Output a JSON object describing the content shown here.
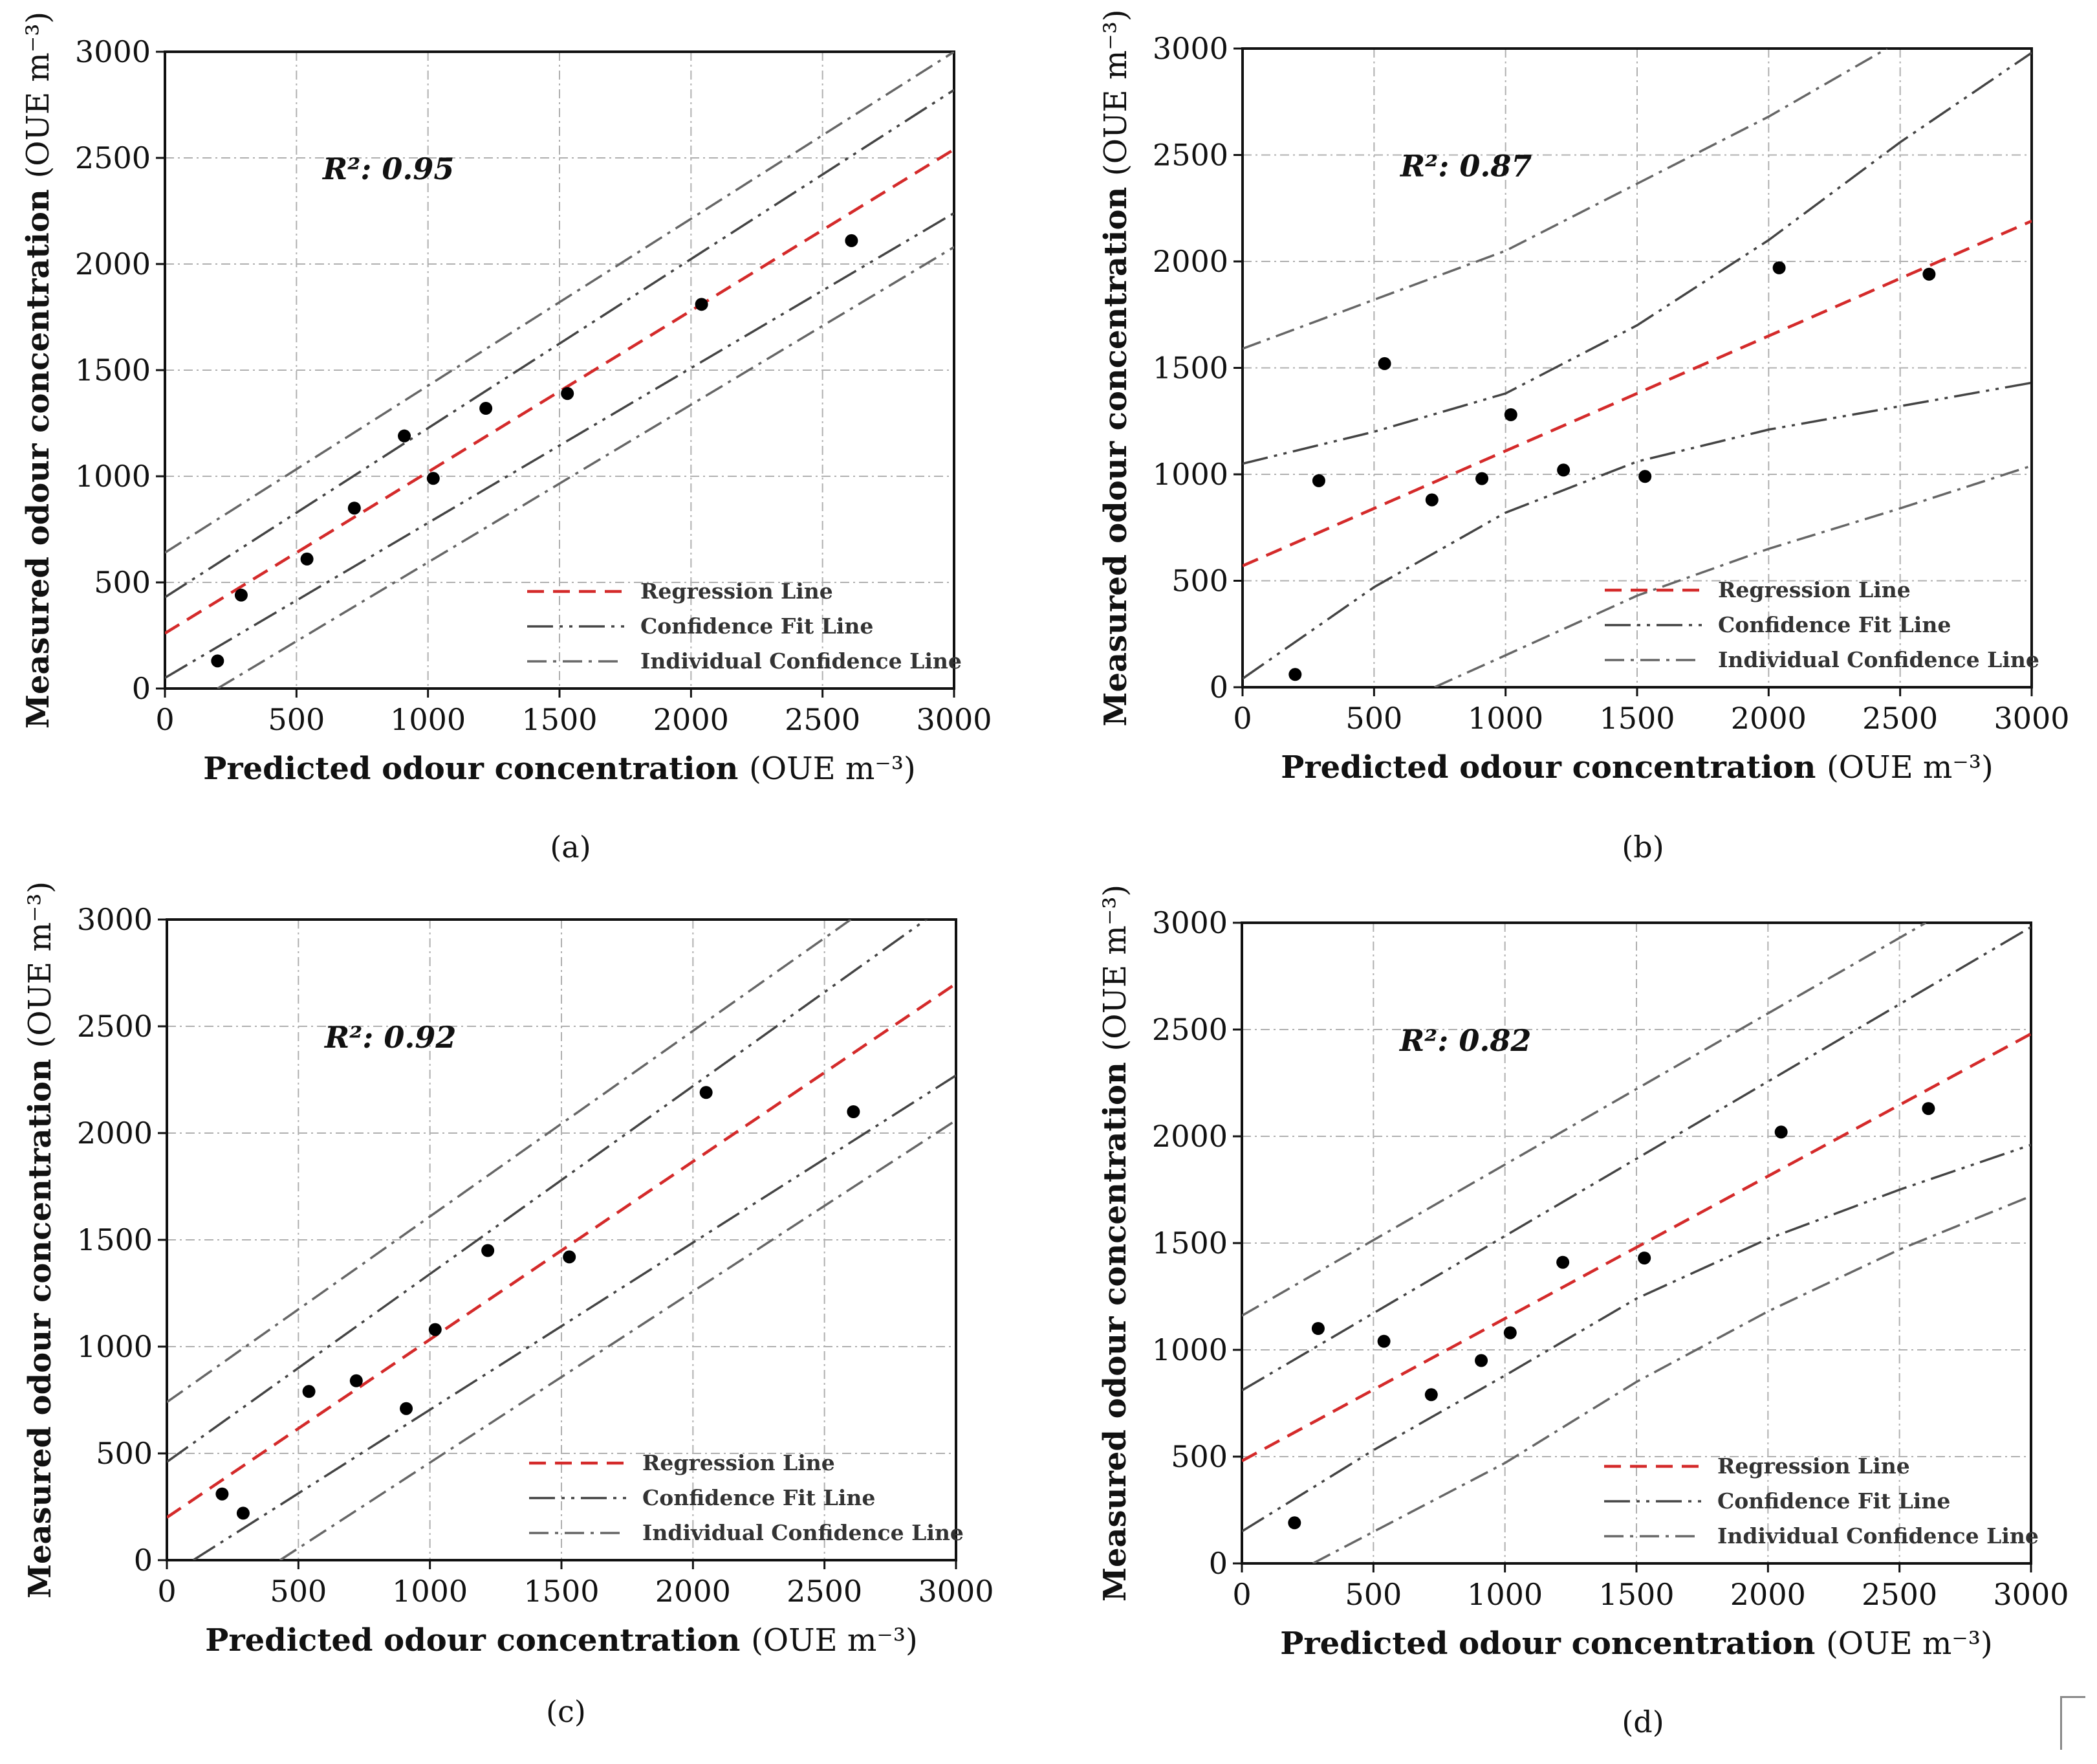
{
  "labels": {
    "x_axis": "Predicted odour concentration",
    "y_axis": "Measured odour concentration",
    "unit": "(OUE m⁻³)",
    "legend": [
      "Regression Line",
      "Confidence Fit Line",
      "Individual Confidence Line"
    ]
  },
  "chart_data": [
    {
      "type": "scatter",
      "caption": "(a)",
      "r2_label": "R²: 0.95",
      "xlabel": "Predicted odour concentration (OUE m⁻³)",
      "ylabel": "Measured odour concentration (OUE m⁻³)",
      "xlim": [
        0,
        3000
      ],
      "ylim": [
        0,
        3000
      ],
      "xticks": [
        0,
        500,
        1000,
        1500,
        2000,
        2500,
        3000
      ],
      "yticks": [
        0,
        500,
        1000,
        1500,
        2000,
        2500,
        3000
      ],
      "grid": true,
      "legend_position": "bottom-right",
      "points": [
        [
          200,
          130
        ],
        [
          290,
          440
        ],
        [
          540,
          610
        ],
        [
          720,
          850
        ],
        [
          910,
          1190
        ],
        [
          1020,
          990
        ],
        [
          1220,
          1320
        ],
        [
          1530,
          1390
        ],
        [
          2040,
          1810
        ],
        [
          2610,
          2110
        ]
      ],
      "regression": [
        [
          0,
          260
        ],
        [
          3000,
          2540
        ]
      ],
      "confidence_upper": [
        [
          0,
          430
        ],
        [
          3000,
          2820
        ]
      ],
      "confidence_lower": [
        [
          0,
          50
        ],
        [
          3000,
          2240
        ]
      ],
      "individual_upper": [
        [
          0,
          640
        ],
        [
          3000,
          3000
        ]
      ],
      "individual_lower": [
        [
          200,
          0
        ],
        [
          3000,
          2080
        ]
      ]
    },
    {
      "type": "scatter",
      "caption": "(b)",
      "r2_label": "R²: 0.87",
      "xlabel": "Predicted odour concentration (OUE m⁻³)",
      "ylabel": "Measured odour concentration (OUE m⁻³)",
      "xlim": [
        0,
        3000
      ],
      "ylim": [
        0,
        3000
      ],
      "xticks": [
        0,
        500,
        1000,
        1500,
        2000,
        2500,
        3000
      ],
      "yticks": [
        0,
        500,
        1000,
        1500,
        2000,
        2500,
        3000
      ],
      "grid": true,
      "legend_position": "bottom-right",
      "points": [
        [
          200,
          60
        ],
        [
          290,
          970
        ],
        [
          540,
          1520
        ],
        [
          720,
          880
        ],
        [
          910,
          980
        ],
        [
          1020,
          1280
        ],
        [
          1220,
          1020
        ],
        [
          1530,
          990
        ],
        [
          2040,
          1970
        ],
        [
          2610,
          1940
        ]
      ],
      "regression": [
        [
          0,
          570
        ],
        [
          3000,
          2190
        ]
      ],
      "confidence_upper": [
        [
          0,
          1050
        ],
        [
          500,
          1200
        ],
        [
          1000,
          1380
        ],
        [
          1500,
          1700
        ],
        [
          2000,
          2100
        ],
        [
          2500,
          2560
        ],
        [
          3000,
          2980
        ]
      ],
      "confidence_lower": [
        [
          0,
          40
        ],
        [
          500,
          470
        ],
        [
          1000,
          820
        ],
        [
          1500,
          1060
        ],
        [
          2000,
          1210
        ],
        [
          2500,
          1320
        ],
        [
          3000,
          1430
        ]
      ],
      "individual_upper": [
        [
          0,
          1590
        ],
        [
          1000,
          2050
        ],
        [
          2000,
          2680
        ],
        [
          2450,
          3000
        ]
      ],
      "individual_lower": [
        [
          730,
          0
        ],
        [
          1000,
          150
        ],
        [
          1500,
          430
        ],
        [
          2000,
          650
        ],
        [
          2500,
          840
        ],
        [
          3000,
          1040
        ]
      ]
    },
    {
      "type": "scatter",
      "caption": "(c)",
      "r2_label": "R²: 0.92",
      "xlabel": "Predicted odour concentration (OUE m⁻³)",
      "ylabel": "Measured odour concentration (OUE m⁻³)",
      "xlim": [
        0,
        3000
      ],
      "ylim": [
        0,
        3000
      ],
      "xticks": [
        0,
        500,
        1000,
        1500,
        2000,
        2500,
        3000
      ],
      "yticks": [
        0,
        500,
        1000,
        1500,
        2000,
        2500,
        3000
      ],
      "grid": true,
      "legend_position": "bottom-right",
      "points": [
        [
          210,
          310
        ],
        [
          290,
          220
        ],
        [
          540,
          790
        ],
        [
          720,
          840
        ],
        [
          910,
          710
        ],
        [
          1020,
          1080
        ],
        [
          1220,
          1450
        ],
        [
          1530,
          1420
        ],
        [
          2050,
          2190
        ],
        [
          2610,
          2100
        ]
      ],
      "regression": [
        [
          0,
          200
        ],
        [
          3000,
          2700
        ]
      ],
      "confidence_upper": [
        [
          0,
          460
        ],
        [
          3000,
          3100
        ]
      ],
      "confidence_lower": [
        [
          100,
          0
        ],
        [
          3000,
          2270
        ]
      ],
      "individual_upper": [
        [
          0,
          740
        ],
        [
          2600,
          3000
        ]
      ],
      "individual_lower": [
        [
          430,
          0
        ],
        [
          3000,
          2060
        ]
      ]
    },
    {
      "type": "scatter",
      "caption": "(d)",
      "r2_label": "R²: 0.82",
      "xlabel": "Predicted odour concentration (OUE m⁻³)",
      "ylabel": "Measured odour concentration (OUE m⁻³)",
      "xlim": [
        0,
        3000
      ],
      "ylim": [
        0,
        3000
      ],
      "xticks": [
        0,
        500,
        1000,
        1500,
        2000,
        2500,
        3000
      ],
      "yticks": [
        0,
        500,
        1000,
        1500,
        2000,
        2500,
        3000
      ],
      "grid": true,
      "legend_position": "bottom-right",
      "points": [
        [
          200,
          190
        ],
        [
          290,
          1100
        ],
        [
          540,
          1040
        ],
        [
          720,
          790
        ],
        [
          910,
          950
        ],
        [
          1020,
          1080
        ],
        [
          1220,
          1410
        ],
        [
          1530,
          1430
        ],
        [
          2050,
          2020
        ],
        [
          2610,
          2130
        ]
      ],
      "regression": [
        [
          0,
          480
        ],
        [
          3000,
          2480
        ]
      ],
      "confidence_upper": [
        [
          0,
          810
        ],
        [
          3000,
          2980
        ]
      ],
      "confidence_lower": [
        [
          0,
          150
        ],
        [
          500,
          530
        ],
        [
          1000,
          880
        ],
        [
          1500,
          1240
        ],
        [
          2000,
          1520
        ],
        [
          2500,
          1750
        ],
        [
          3000,
          1960
        ]
      ],
      "individual_upper": [
        [
          0,
          1160
        ],
        [
          2600,
          3000
        ]
      ],
      "individual_lower": [
        [
          270,
          0
        ],
        [
          1000,
          470
        ],
        [
          1500,
          850
        ],
        [
          2000,
          1180
        ],
        [
          2500,
          1470
        ],
        [
          3000,
          1720
        ]
      ]
    }
  ]
}
